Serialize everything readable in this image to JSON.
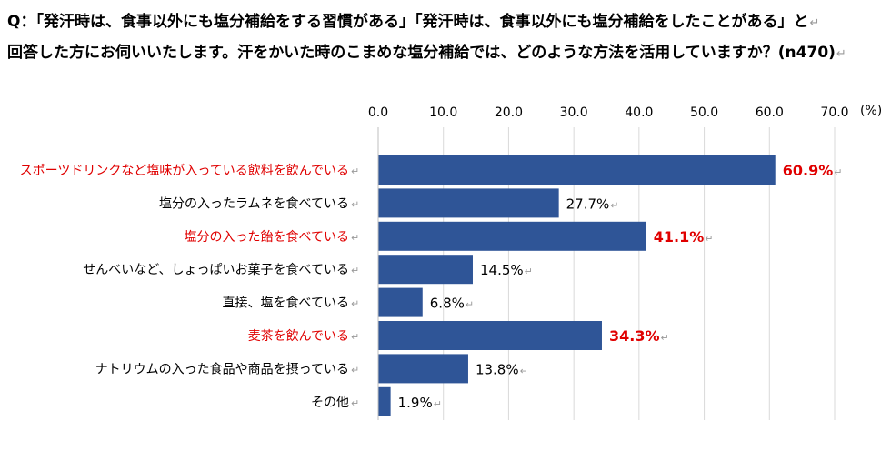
{
  "question": {
    "line1": "Q：「発汗時は、食事以外にも塩分補給をする習慣がある」「発汗時は、食事以外にも塩分補給をしたことがある」と",
    "line2": "回答した方にお伺いいたします。汗をかいた時のこまめな塩分補給では、どのような方法を活用していますか？(n470)"
  },
  "chart_data": {
    "type": "bar",
    "orientation": "horizontal",
    "unit_label": "(%)",
    "xlim": [
      0,
      70
    ],
    "ticks": [
      "0.0",
      "10.0",
      "20.0",
      "30.0",
      "40.0",
      "50.0",
      "60.0",
      "70.0"
    ],
    "grid": true,
    "bar_color": "#2f5597",
    "highlight_color": "#e00000",
    "categories": [
      "スポーツドリンクなど塩味が入っている飲料を飲んでいる",
      "塩分の入ったラムネを食べている",
      "塩分の入った飴を食べている",
      "せんべいなど、しょっぱいお菓子を食べている",
      "直接、塩を食べている",
      "麦茶を飲んでいる",
      "ナトリウムの入った食品や商品を摂っている",
      "その他"
    ],
    "values": [
      60.9,
      27.7,
      41.1,
      14.5,
      6.8,
      34.3,
      13.8,
      1.9
    ],
    "value_labels": [
      "60.9%",
      "27.7%",
      "41.1%",
      "14.5%",
      "6.8%",
      "34.3%",
      "13.8%",
      "1.9%"
    ],
    "highlighted": [
      true,
      false,
      true,
      false,
      false,
      true,
      false,
      false
    ]
  }
}
